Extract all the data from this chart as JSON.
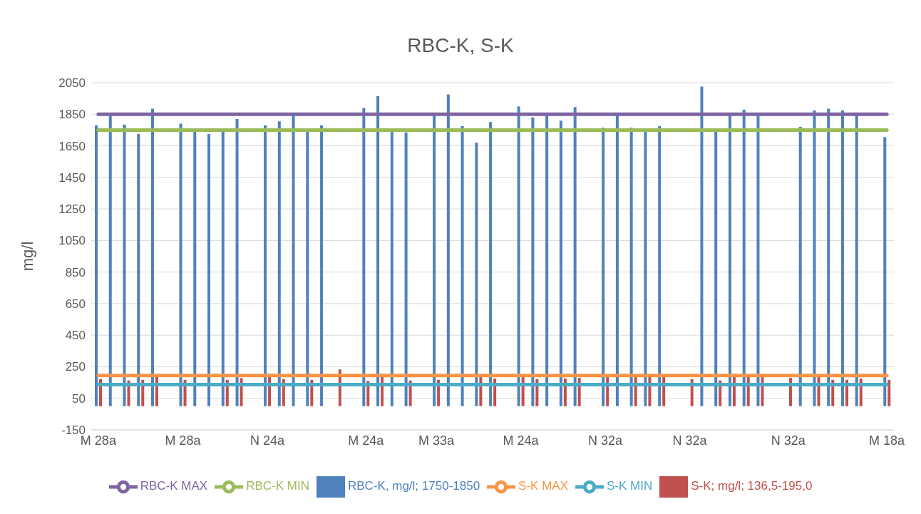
{
  "chart_data": {
    "type": "bar",
    "title": "RBC-K, S-K",
    "ylabel": "mg/l",
    "categories": [
      "M 28a",
      null,
      null,
      null,
      null,
      null,
      "M 28a",
      null,
      null,
      null,
      null,
      null,
      "N 24a",
      null,
      null,
      null,
      null,
      null,
      null,
      "M 24a",
      null,
      null,
      null,
      null,
      "M 33a",
      null,
      null,
      null,
      null,
      null,
      "M 24a",
      null,
      null,
      null,
      null,
      null,
      "N 32a",
      null,
      null,
      null,
      null,
      null,
      "N 32a",
      null,
      null,
      null,
      null,
      null,
      null,
      "N 32a",
      null,
      null,
      null,
      null,
      null,
      null,
      "M 18a"
    ],
    "series": [
      {
        "name": "RBC-K, mg/l; 1750-1850",
        "color": "#4f81bd",
        "values": [
          1780,
          1845,
          1785,
          1725,
          1885,
          null,
          1790,
          1745,
          1725,
          1740,
          1820,
          null,
          1780,
          1805,
          1845,
          1745,
          1780,
          null,
          null,
          1890,
          1965,
          1745,
          1735,
          null,
          1845,
          1975,
          1775,
          1670,
          1800,
          null,
          1900,
          1830,
          1845,
          1810,
          1895,
          null,
          1765,
          1845,
          1765,
          1745,
          1775,
          null,
          null,
          2025,
          1745,
          1845,
          1880,
          1845,
          null,
          null,
          1770,
          1875,
          1885,
          1875,
          1845,
          null,
          1705
        ]
      },
      {
        "name": "S-K; mg/l; 136,5-195,0",
        "color": "#c0504d",
        "values": [
          172,
          null,
          163,
          167,
          200,
          null,
          167,
          null,
          null,
          167,
          178,
          null,
          205,
          172,
          null,
          167,
          null,
          233,
          null,
          160,
          187,
          null,
          163,
          null,
          167,
          null,
          null,
          184,
          175,
          null,
          184,
          172,
          null,
          175,
          179,
          null,
          184,
          null,
          184,
          184,
          184,
          null,
          172,
          null,
          163,
          184,
          184,
          184,
          null,
          179,
          null,
          184,
          167,
          167,
          175,
          null,
          167
        ]
      },
      {
        "name": "RBC-K MIN",
        "type": "line",
        "color": "#9bbb59",
        "values": [
          1750,
          1750,
          1750,
          1750,
          1750,
          1750,
          1750,
          1750,
          1750,
          1750,
          1750,
          1750,
          1750,
          1750,
          1750,
          1750,
          1750,
          1750,
          1750,
          1750,
          1750,
          1750,
          1750,
          1750,
          1750,
          1750,
          1750,
          1750,
          1750,
          1750,
          1750,
          1750,
          1750,
          1750,
          1750,
          1750,
          1750,
          1750,
          1750,
          1750,
          1750,
          1750,
          1750,
          1750,
          1750,
          1750,
          1750,
          1750,
          1750,
          1750,
          1750,
          1750,
          1750,
          1750,
          1750,
          1750,
          1750
        ]
      },
      {
        "name": "RBC-K MAX",
        "type": "line",
        "color": "#8064a2",
        "values": [
          1850,
          1850,
          1850,
          1850,
          1850,
          1850,
          1850,
          1850,
          1850,
          1850,
          1850,
          1850,
          1850,
          1850,
          1850,
          1850,
          1850,
          1850,
          1850,
          1850,
          1850,
          1850,
          1850,
          1850,
          1850,
          1850,
          1850,
          1850,
          1850,
          1850,
          1850,
          1850,
          1850,
          1850,
          1850,
          1850,
          1850,
          1850,
          1850,
          1850,
          1850,
          1850,
          1850,
          1850,
          1850,
          1850,
          1850,
          1850,
          1850,
          1850,
          1850,
          1850,
          1850,
          1850,
          1850,
          1850,
          1850
        ]
      },
      {
        "name": "S-K MIN",
        "type": "line",
        "color": "#4bacc6",
        "values": [
          136.5,
          136.5,
          136.5,
          136.5,
          136.5,
          136.5,
          136.5,
          136.5,
          136.5,
          136.5,
          136.5,
          136.5,
          136.5,
          136.5,
          136.5,
          136.5,
          136.5,
          136.5,
          136.5,
          136.5,
          136.5,
          136.5,
          136.5,
          136.5,
          136.5,
          136.5,
          136.5,
          136.5,
          136.5,
          136.5,
          136.5,
          136.5,
          136.5,
          136.5,
          136.5,
          136.5,
          136.5,
          136.5,
          136.5,
          136.5,
          136.5,
          136.5,
          136.5,
          136.5,
          136.5,
          136.5,
          136.5,
          136.5,
          136.5,
          136.5,
          136.5,
          136.5,
          136.5,
          136.5,
          136.5,
          136.5,
          136.5
        ]
      },
      {
        "name": "S-K MAX",
        "type": "line",
        "color": "#f79646",
        "values": [
          195,
          195,
          195,
          195,
          195,
          195,
          195,
          195,
          195,
          195,
          195,
          195,
          195,
          195,
          195,
          195,
          195,
          195,
          195,
          195,
          195,
          195,
          195,
          195,
          195,
          195,
          195,
          195,
          195,
          195,
          195,
          195,
          195,
          195,
          195,
          195,
          195,
          195,
          195,
          195,
          195,
          195,
          195,
          195,
          195,
          195,
          195,
          195,
          195,
          195,
          195,
          195,
          195,
          195,
          195,
          195,
          195
        ]
      }
    ],
    "ylim": [
      -150,
      2050
    ],
    "yticks": [
      -150,
      50,
      250,
      450,
      650,
      850,
      1050,
      1250,
      1450,
      1650,
      1850,
      2050
    ],
    "grid": "y",
    "legend": "bottom",
    "marker": "none"
  }
}
